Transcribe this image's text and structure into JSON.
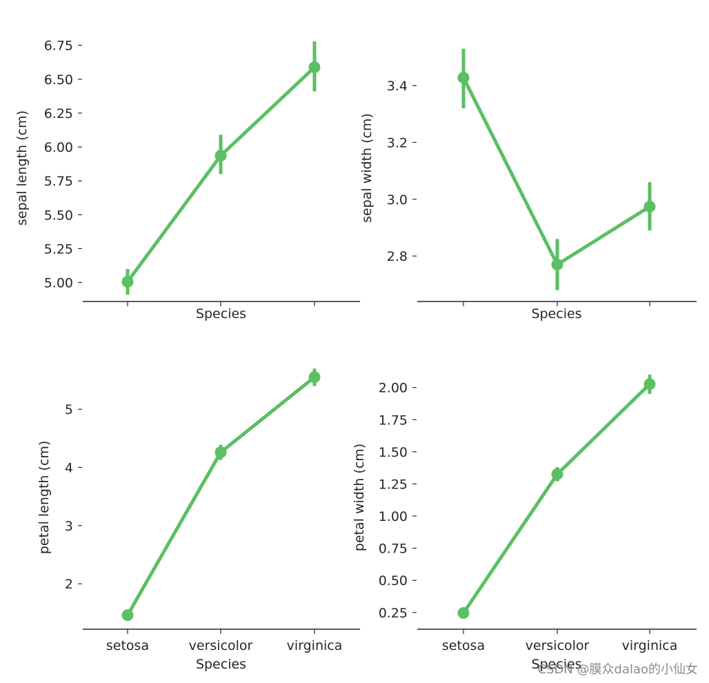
{
  "colors": {
    "line": "#5cbf63",
    "axis": "#262626"
  },
  "watermark": "CSDN @膜众dalao的小仙女",
  "chart_data": [
    {
      "type": "line",
      "panel": "top-left",
      "xlabel": "Species",
      "ylabel": "sepal length (cm)",
      "categories": [
        "setosa",
        "versicolor",
        "virginica"
      ],
      "show_category_labels": false,
      "values": [
        5.006,
        5.936,
        6.588
      ],
      "error_low": [
        4.91,
        5.8,
        6.41
      ],
      "error_high": [
        5.1,
        6.09,
        6.78
      ],
      "ylim": [
        4.86,
        6.83
      ],
      "yticks": [
        5.0,
        5.25,
        5.5,
        5.75,
        6.0,
        6.25,
        6.5,
        6.75
      ],
      "ytick_labels": [
        "5.00",
        "5.25",
        "5.50",
        "5.75",
        "6.00",
        "6.25",
        "6.50",
        "6.75"
      ]
    },
    {
      "type": "line",
      "panel": "top-right",
      "xlabel": "Species",
      "ylabel": "sepal width (cm)",
      "categories": [
        "setosa",
        "versicolor",
        "virginica"
      ],
      "show_category_labels": false,
      "values": [
        3.428,
        2.77,
        2.974
      ],
      "error_low": [
        3.32,
        2.68,
        2.89
      ],
      "error_high": [
        3.53,
        2.86,
        3.06
      ],
      "ylim": [
        2.64,
        3.58
      ],
      "yticks": [
        2.8,
        3.0,
        3.2,
        3.4
      ],
      "ytick_labels": [
        "2.8",
        "3.0",
        "3.2",
        "3.4"
      ]
    },
    {
      "type": "line",
      "panel": "bottom-left",
      "xlabel": "Species",
      "ylabel": "petal length (cm)",
      "categories": [
        "setosa",
        "versicolor",
        "virginica"
      ],
      "show_category_labels": true,
      "values": [
        1.462,
        4.26,
        5.552
      ],
      "error_low": [
        1.41,
        4.13,
        5.4
      ],
      "error_high": [
        1.51,
        4.39,
        5.7
      ],
      "ylim": [
        1.22,
        5.75
      ],
      "yticks": [
        2,
        3,
        4,
        5
      ],
      "ytick_labels": [
        "2",
        "3",
        "4",
        "5"
      ]
    },
    {
      "type": "line",
      "panel": "bottom-right",
      "xlabel": "Species",
      "ylabel": "petal width (cm)",
      "categories": [
        "setosa",
        "versicolor",
        "virginica"
      ],
      "show_category_labels": true,
      "values": [
        0.246,
        1.326,
        2.026
      ],
      "error_low": [
        0.22,
        1.27,
        1.95
      ],
      "error_high": [
        0.27,
        1.38,
        2.1
      ],
      "ylim": [
        0.12,
        2.17
      ],
      "yticks": [
        0.25,
        0.5,
        0.75,
        1.0,
        1.25,
        1.5,
        1.75,
        2.0
      ],
      "ytick_labels": [
        "0.25",
        "0.50",
        "0.75",
        "1.00",
        "1.25",
        "1.50",
        "1.75",
        "2.00"
      ]
    }
  ]
}
